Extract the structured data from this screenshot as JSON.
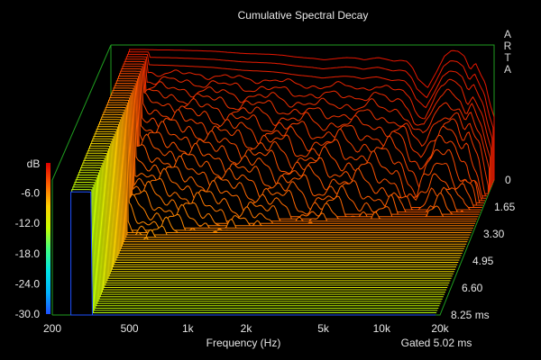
{
  "chart_data": {
    "type": "waterfall",
    "title": "Cumulative Spectral Decay",
    "watermark": "ARTA",
    "xlabel": "Frequency (Hz)",
    "zlabel": "dB",
    "gating_note": "Gated 5.02 ms",
    "x_scale": "log",
    "x_range": [
      200,
      20000
    ],
    "x_ticks": [
      {
        "value": 200,
        "label": "200"
      },
      {
        "value": 500,
        "label": "500"
      },
      {
        "value": 1000,
        "label": "1k"
      },
      {
        "value": 2000,
        "label": "2k"
      },
      {
        "value": 5000,
        "label": "5k"
      },
      {
        "value": 10000,
        "label": "10k"
      },
      {
        "value": 20000,
        "label": "20k"
      }
    ],
    "z_range": [
      -30,
      0
    ],
    "z_ticks": [
      {
        "value": -6,
        "label": "-6.0"
      },
      {
        "value": -12,
        "label": "-12.0"
      },
      {
        "value": -18,
        "label": "-18.0"
      },
      {
        "value": -24,
        "label": "-24.0"
      },
      {
        "value": -30,
        "label": "-30.0"
      }
    ],
    "time_range_ms": [
      0,
      8.25
    ],
    "time_ticks": [
      {
        "value": 0,
        "label": "0"
      },
      {
        "value": 1.65,
        "label": "1.65"
      },
      {
        "value": 3.3,
        "label": "3.30"
      },
      {
        "value": 4.95,
        "label": "4.95"
      },
      {
        "value": 6.6,
        "label": "6.60"
      },
      {
        "value": 8.25,
        "label": "8.25 ms"
      }
    ],
    "colorscale": [
      "#1e50ff",
      "#00b4ff",
      "#00e5e5",
      "#40ff80",
      "#c8ff00",
      "#ffd000",
      "#ff6000",
      "#e00000"
    ],
    "front_slice": {
      "time_ms": 0,
      "freq_hz": [
        250,
        300,
        350,
        400,
        500,
        600,
        700,
        800,
        1000,
        1200,
        1400,
        1600,
        1800,
        2000,
        2300,
        2600,
        3000,
        3400,
        3800,
        4200,
        4600,
        5000,
        5500,
        6000,
        6500,
        7000,
        7500,
        8000,
        9000,
        10000,
        11000,
        12000,
        13000,
        14000,
        15000,
        16000,
        17000,
        18000,
        19000,
        20000
      ],
      "level_db": [
        -1.0,
        -1.0,
        -1.1,
        -1.1,
        -1.2,
        -1.3,
        -1.4,
        -1.6,
        -1.9,
        -2.0,
        -2.1,
        -2.3,
        -2.6,
        -2.8,
        -3.0,
        -3.3,
        -3.0,
        -2.8,
        -2.9,
        -3.3,
        -3.0,
        -2.8,
        -3.2,
        -3.6,
        -3.4,
        -3.6,
        -5.0,
        -7.5,
        -9.5,
        -6.0,
        -2.5,
        -1.2,
        -1.4,
        -2.5,
        -5.5,
        -4.0,
        -6.5,
        -8.5,
        -13.0,
        -16.0
      ]
    }
  }
}
